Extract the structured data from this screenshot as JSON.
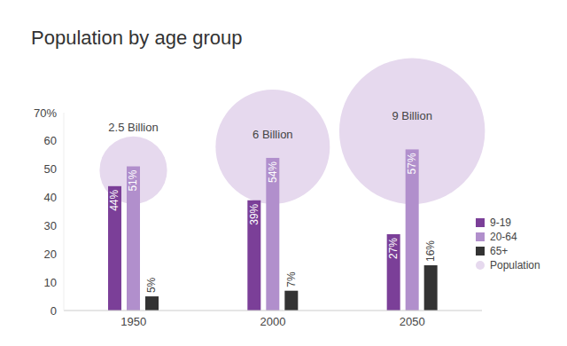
{
  "chart_data": {
    "type": "bar",
    "title": "Population by age group",
    "categories": [
      "1950",
      "2000",
      "2050"
    ],
    "series": [
      {
        "name": "9-19",
        "color": "#7b3f98",
        "values": [
          44,
          39,
          27
        ],
        "value_labels": [
          "44%",
          "39%",
          "27%"
        ]
      },
      {
        "name": "20-64",
        "color": "#b18fcc",
        "values": [
          51,
          54,
          57
        ],
        "value_labels": [
          "51%",
          "54%",
          "57%"
        ]
      },
      {
        "name": "65+",
        "color": "#333333",
        "values": [
          5,
          7,
          16
        ],
        "value_labels": [
          "5%",
          "7%",
          "16%"
        ]
      },
      {
        "name": "Population",
        "type": "bubble",
        "color": "#e6d9ee",
        "values": [
          2.5,
          6,
          9
        ],
        "value_labels": [
          "2.5 Billion",
          "6 Billion",
          "9 Billion"
        ]
      }
    ],
    "ylim": [
      0,
      70
    ],
    "yticks": [
      0,
      10,
      20,
      30,
      40,
      50,
      60,
      {
        "value": 70,
        "label": "70%"
      }
    ],
    "grid": false,
    "legend": "right",
    "data_labels": true
  }
}
